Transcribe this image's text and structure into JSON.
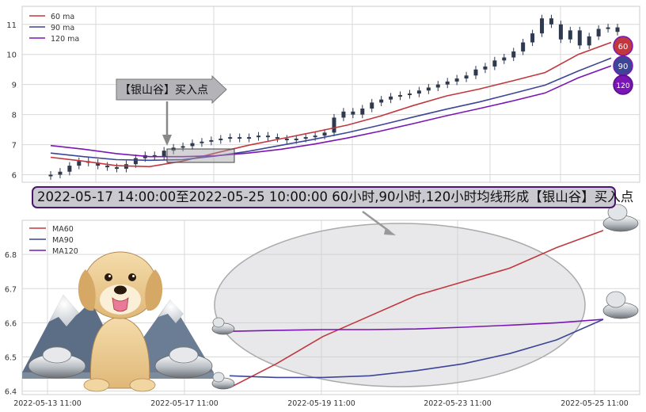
{
  "colors": {
    "ma60": "#c0383e",
    "ma90": "#3d4596",
    "ma120": "#7a16b4",
    "candle": "#2f3a4e",
    "grid": "#d9d9d9"
  },
  "chart_data": [
    {
      "type": "line",
      "title": "",
      "legend": [
        "60 ma",
        "90 ma",
        "120 ma"
      ],
      "legend_position": "top-left",
      "grid": true,
      "ylim": [
        5.75,
        11.6
      ],
      "yticks": [
        6,
        7,
        8,
        9,
        10,
        11
      ],
      "candles_close": [
        6.0,
        6.1,
        6.3,
        6.45,
        6.4,
        6.3,
        6.25,
        6.2,
        6.35,
        6.55,
        6.65,
        6.6,
        6.8,
        6.9,
        6.95,
        7.05,
        7.1,
        7.15,
        7.2,
        7.25,
        7.2,
        7.25,
        7.3,
        7.25,
        7.2,
        7.15,
        7.2,
        7.25,
        7.3,
        7.4,
        7.9,
        8.1,
        8.0,
        8.2,
        8.4,
        8.5,
        8.6,
        8.65,
        8.7,
        8.8,
        8.9,
        9.0,
        9.1,
        9.2,
        9.3,
        9.5,
        9.6,
        9.8,
        9.9,
        10.1,
        10.4,
        10.7,
        11.2,
        11.0,
        10.5,
        10.8,
        10.3,
        10.6,
        10.85,
        10.9,
        10.75
      ],
      "series": [
        {
          "name": "60 ma",
          "values": [
            6.58,
            6.45,
            6.3,
            6.27,
            6.45,
            6.72,
            6.98,
            7.2,
            7.42,
            7.65,
            7.95,
            8.3,
            8.62,
            8.85,
            9.12,
            9.4,
            10.0,
            10.4
          ]
        },
        {
          "name": "90 ma",
          "values": [
            6.72,
            6.6,
            6.5,
            6.48,
            6.5,
            6.62,
            6.78,
            6.98,
            7.18,
            7.4,
            7.65,
            7.92,
            8.18,
            8.42,
            8.7,
            8.98,
            9.45,
            9.88
          ]
        },
        {
          "name": "120 ma",
          "values": [
            6.97,
            6.85,
            6.7,
            6.6,
            6.6,
            6.63,
            6.72,
            6.85,
            7.02,
            7.22,
            7.45,
            7.7,
            7.96,
            8.2,
            8.45,
            8.72,
            9.22,
            9.62
          ]
        }
      ],
      "badges": [
        "60",
        "90",
        "120"
      ],
      "annotation": {
        "text": "【银山谷】买入点"
      }
    },
    {
      "type": "line",
      "title": "",
      "legend": [
        "MA60",
        "MA90",
        "MA120"
      ],
      "legend_position": "top-left",
      "grid": true,
      "ylim": [
        6.39,
        6.9
      ],
      "yticks": [
        6.4,
        6.5,
        6.6,
        6.7,
        6.8
      ],
      "x": [
        "2022-05-17 14:00",
        "2022-05-18 11:00",
        "2022-05-19 10:00",
        "2022-05-19 14:00",
        "2022-05-20 11:00",
        "2022-05-23 10:00",
        "2022-05-23 14:00",
        "2022-05-24 11:00",
        "2022-05-25 10:00"
      ],
      "xticks": [
        "2022-05-13 11:00",
        "2022-05-17 11:00",
        "2022-05-19 11:00",
        "2022-05-23 11:00",
        "2022-05-25 11:00"
      ],
      "series": [
        {
          "name": "MA60",
          "values": [
            6.41,
            6.48,
            6.56,
            6.62,
            6.68,
            6.72,
            6.76,
            6.82,
            6.87
          ]
        },
        {
          "name": "MA90",
          "values": [
            6.445,
            6.44,
            6.44,
            6.445,
            6.46,
            6.48,
            6.51,
            6.55,
            6.61
          ]
        },
        {
          "name": "MA120",
          "values": [
            6.575,
            6.578,
            6.58,
            6.58,
            6.582,
            6.587,
            6.593,
            6.6,
            6.61
          ]
        }
      ]
    }
  ],
  "banner": {
    "text": "2022-05-17 14:00:00至2022-05-25 10:00:00 60小时,90小时,120小时均线形成【银山谷】买入点"
  }
}
